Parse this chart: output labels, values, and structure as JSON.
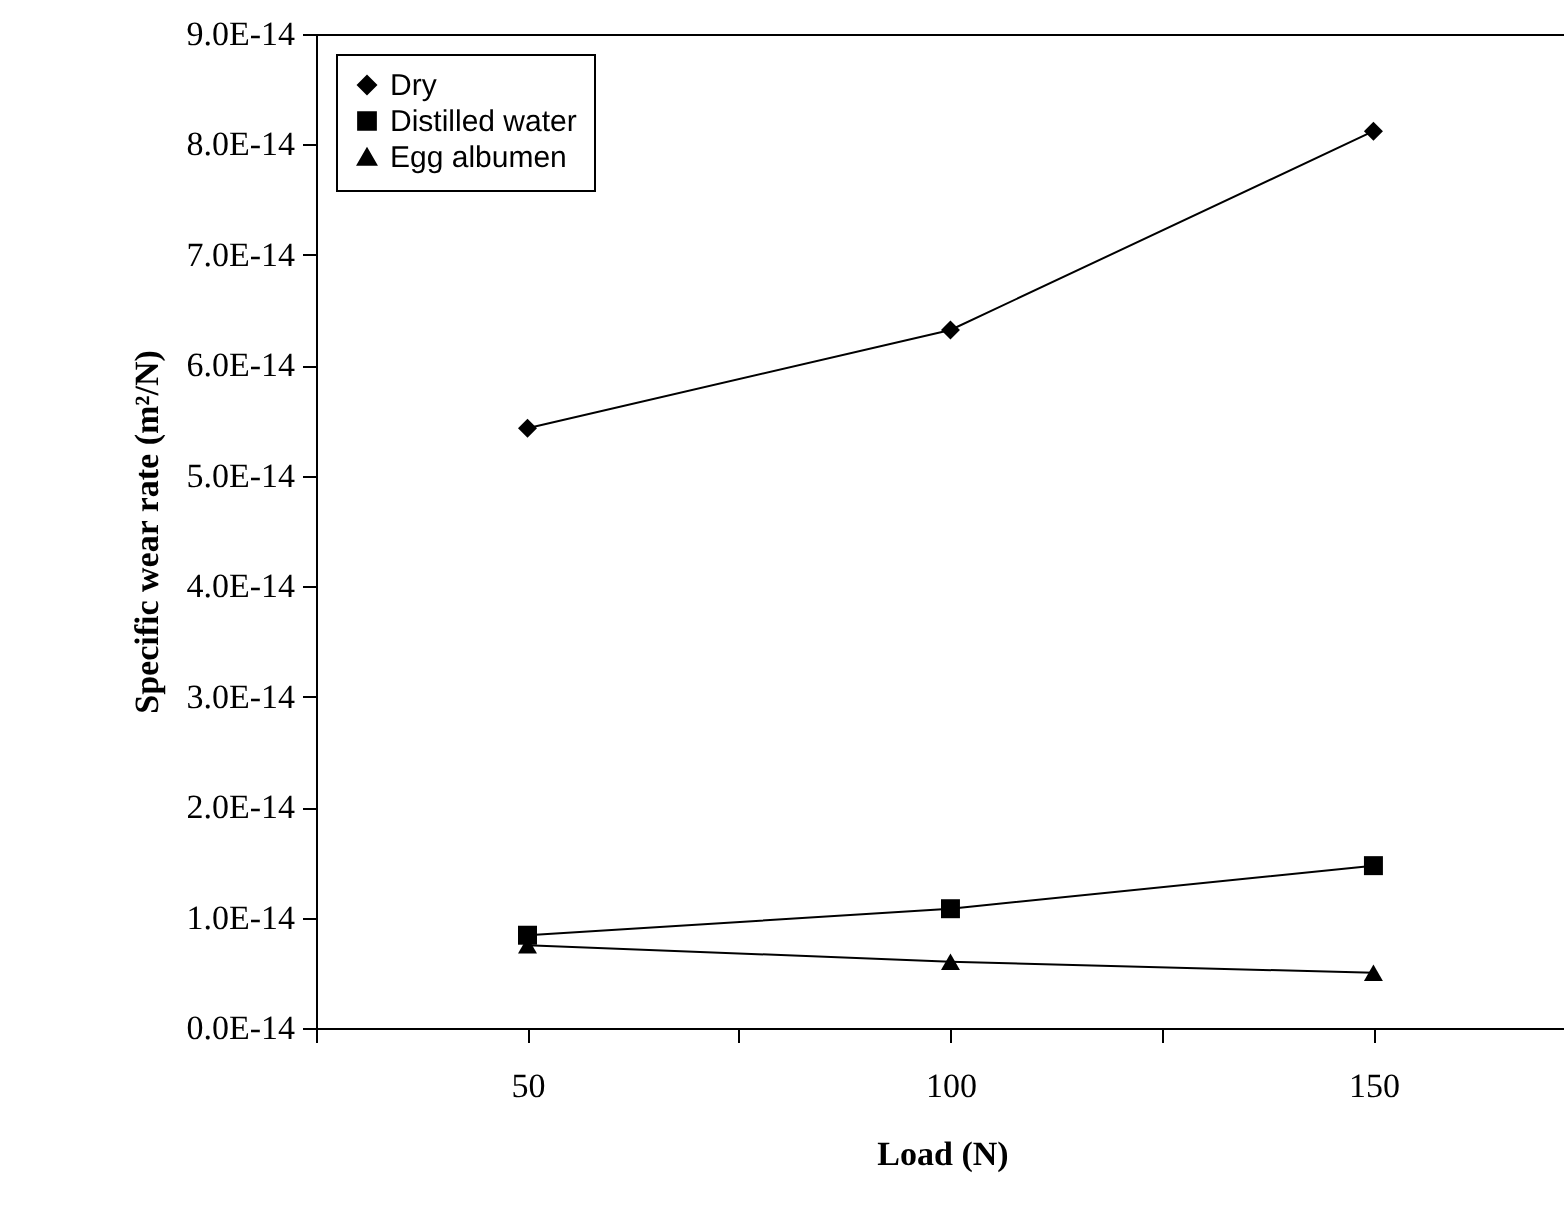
{
  "chart_data": {
    "type": "line",
    "xlabel": "Load (N)",
    "ylabel": "Specific wear rate (m²/N)",
    "x": [
      50,
      100,
      150
    ],
    "series": [
      {
        "name": "Dry",
        "color": "#000000",
        "marker": "diamond",
        "values": [
          5.43e-14,
          6.32e-14,
          8.12e-14
        ]
      },
      {
        "name": "Distilled water",
        "color": "#000000",
        "marker": "square",
        "values": [
          8.4e-15,
          1.08e-14,
          1.47e-14
        ]
      },
      {
        "name": "Egg albumen",
        "color": "#000000",
        "marker": "triangle",
        "values": [
          7.5e-15,
          6e-15,
          5e-15
        ]
      }
    ],
    "xlim": [
      25,
      173
    ],
    "xticks": [
      {
        "value": 25,
        "label": null
      },
      50,
      {
        "value": 75,
        "label": null
      },
      100,
      {
        "value": 125,
        "label": null
      },
      150
    ],
    "ylim": [
      0,
      9e-14
    ],
    "yticks": [
      {
        "value": 0,
        "label": "0.0E-14"
      },
      {
        "value": 1e-14,
        "label": "1.0E-14"
      },
      {
        "value": 2e-14,
        "label": "2.0E-14"
      },
      {
        "value": 3e-14,
        "label": "3.0E-14"
      },
      {
        "value": 4e-14,
        "label": "4.0E-14"
      },
      {
        "value": 5e-14,
        "label": "5.0E-14"
      },
      {
        "value": 6e-14,
        "label": "6.0E-14"
      },
      {
        "value": 7e-14,
        "label": "7.0E-14"
      },
      {
        "value": 8e-14,
        "label": "8.0E-14"
      },
      {
        "value": 9e-14,
        "label": "9.0E-14"
      }
    ],
    "grid": false,
    "legend": "top left",
    "line_style": "solid"
  }
}
